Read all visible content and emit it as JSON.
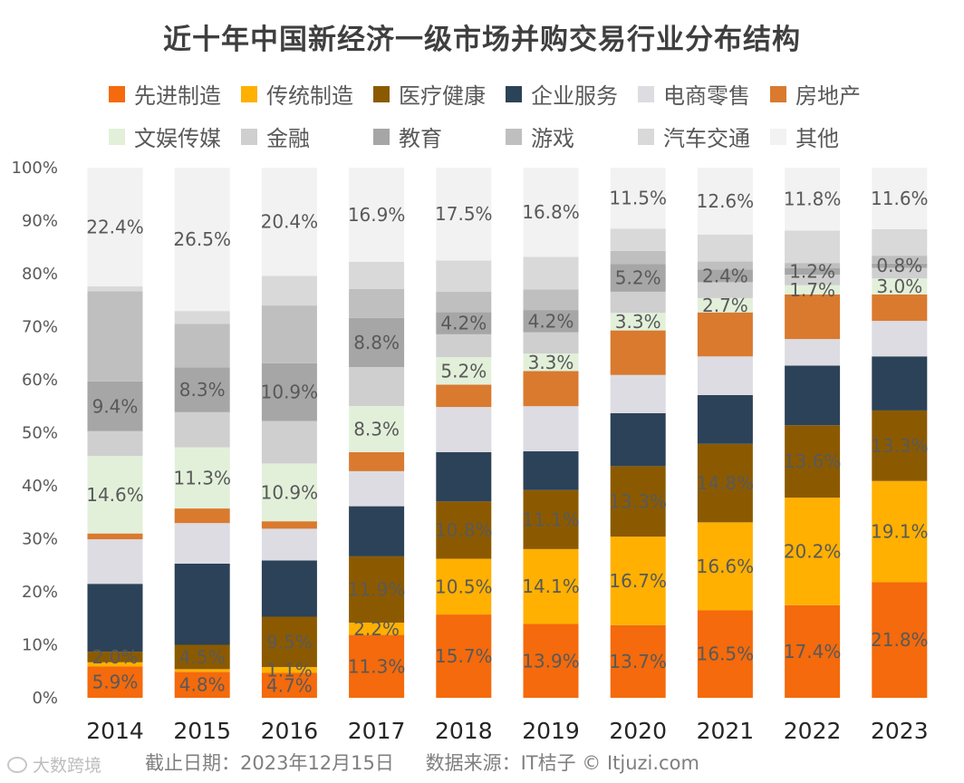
{
  "title": "近十年中国新经济一级市场并购交易行业分布结构",
  "footer": {
    "date_text": "截止日期：2023年12月15日",
    "source_text": "数据来源：IT桔子 © Itjuzi.com"
  },
  "watermark": {
    "left_text": "大数跨境"
  },
  "chart_data": {
    "type": "bar",
    "stacked": true,
    "categories": [
      "2014",
      "2015",
      "2016",
      "2017",
      "2018",
      "2019",
      "2020",
      "2021",
      "2022",
      "2023"
    ],
    "ylim": [
      0,
      100
    ],
    "y_ticks": [
      "0%",
      "10%",
      "20%",
      "30%",
      "40%",
      "50%",
      "60%",
      "70%",
      "80%",
      "90%",
      "100%"
    ],
    "grid": false,
    "legend_position": "top",
    "series": [
      {
        "name": "先进制造",
        "color": "#F46A0C",
        "values": [
          5.9,
          4.8,
          4.7,
          11.3,
          15.7,
          13.9,
          13.7,
          16.5,
          17.4,
          21.8
        ],
        "labels": [
          "5.9%",
          "4.8%",
          "4.7%",
          "11.3%",
          "15.7%",
          "13.9%",
          "13.7%",
          "16.5%",
          "17.4%",
          "21.8%"
        ]
      },
      {
        "name": "传统制造",
        "color": "#FFB000",
        "values": [
          0.8,
          0.5,
          1.1,
          2.2,
          10.5,
          14.1,
          16.7,
          16.6,
          20.2,
          19.1
        ],
        "labels": [
          "",
          "",
          "1.1%",
          "2.2%",
          "10.5%",
          "14.1%",
          "16.7%",
          "16.6%",
          "20.2%",
          "19.1%"
        ]
      },
      {
        "name": "医疗健康",
        "color": "#8B5A00",
        "values": [
          2.0,
          4.5,
          9.5,
          11.9,
          10.8,
          11.1,
          13.3,
          14.8,
          13.6,
          13.3
        ],
        "labels": [
          "2.0%",
          "4.5%",
          "9.5%",
          "11.9%",
          "10.8%",
          "11.1%",
          "13.3%",
          "14.8%",
          "13.6%",
          "13.3%"
        ]
      },
      {
        "name": "企业服务",
        "color": "#2C4258",
        "values": [
          12.8,
          15.0,
          10.6,
          9.0,
          9.3,
          7.3,
          10.0,
          9.2,
          11.2,
          10.2
        ],
        "labels": [
          "",
          "",
          "",
          "",
          "",
          "",
          "",
          "",
          "",
          ""
        ]
      },
      {
        "name": "电商零售",
        "color": "#DCDCE2",
        "values": [
          8.4,
          7.5,
          6.0,
          6.3,
          8.5,
          8.5,
          7.2,
          7.3,
          5.0,
          6.7
        ],
        "labels": [
          "",
          "",
          "",
          "",
          "",
          "",
          "",
          "",
          "",
          ""
        ]
      },
      {
        "name": "房地产",
        "color": "#D97A2F",
        "values": [
          1.1,
          2.7,
          1.4,
          3.4,
          4.2,
          6.6,
          8.4,
          8.3,
          8.4,
          5.0
        ],
        "labels": [
          "",
          "",
          "",
          "",
          "",
          "",
          "",
          "",
          "",
          ""
        ]
      },
      {
        "name": "文娱传媒",
        "color": "#E2F0DA",
        "values": [
          14.6,
          11.3,
          10.9,
          8.3,
          5.2,
          3.3,
          3.3,
          2.7,
          1.7,
          3.0
        ],
        "labels": [
          "14.6%",
          "11.3%",
          "10.9%",
          "8.3%",
          "5.2%",
          "3.3%",
          "3.3%",
          "2.7%",
          "1.7%",
          "3.0%"
        ]
      },
      {
        "name": "金融",
        "color": "#CFCFCF",
        "values": [
          4.7,
          6.5,
          8.0,
          7.0,
          4.3,
          4.0,
          4.0,
          3.0,
          2.0,
          2.0
        ],
        "labels": [
          "",
          "",
          "",
          "",
          "",
          "",
          "",
          "",
          "",
          ""
        ]
      },
      {
        "name": "教育",
        "color": "#A6A6A6",
        "values": [
          9.4,
          8.3,
          10.9,
          8.8,
          4.2,
          4.2,
          5.2,
          2.4,
          1.2,
          0.8
        ],
        "labels": [
          "9.4%",
          "8.3%",
          "10.9%",
          "8.8%",
          "4.2%",
          "4.2%",
          "5.2%",
          "2.4%",
          "1.2%",
          "0.8%"
        ]
      },
      {
        "name": "游戏",
        "color": "#BFBFBF",
        "values": [
          17.0,
          8.0,
          10.9,
          5.2,
          3.8,
          3.9,
          2.5,
          1.5,
          1.0,
          1.5
        ],
        "labels": [
          "",
          "",
          "",
          "",
          "",
          "",
          "",
          "",
          "",
          ""
        ]
      },
      {
        "name": "汽车交通",
        "color": "#D9D9D9",
        "values": [
          0.9,
          2.4,
          5.6,
          4.9,
          5.9,
          6.1,
          4.2,
          5.1,
          6.1,
          5.0
        ],
        "labels": [
          "",
          "",
          "",
          "",
          "",
          "",
          "",
          "",
          "",
          ""
        ]
      },
      {
        "name": "其他",
        "color": "#F2F2F2",
        "values": [
          22.4,
          26.5,
          20.4,
          16.9,
          17.5,
          16.8,
          11.5,
          12.6,
          11.8,
          11.6
        ],
        "labels": [
          "22.4%",
          "26.5%",
          "20.4%",
          "16.9%",
          "17.5%",
          "16.8%",
          "11.5%",
          "12.6%",
          "11.8%",
          "11.6%"
        ]
      }
    ]
  }
}
